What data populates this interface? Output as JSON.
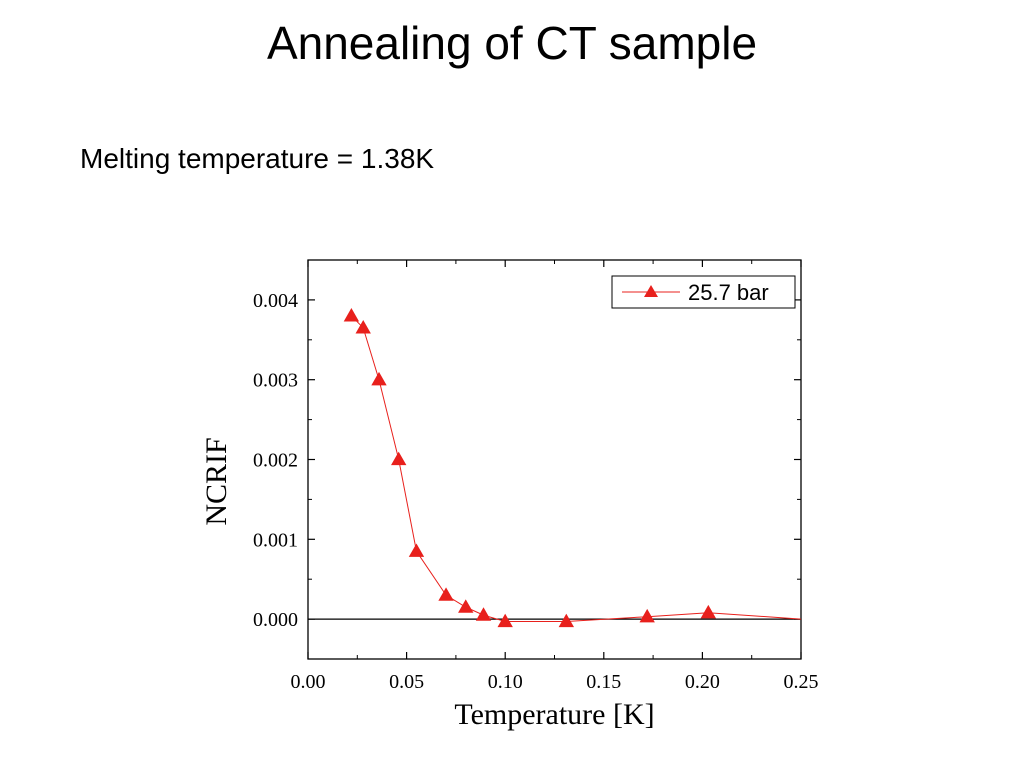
{
  "slide": {
    "title": "Annealing of CT sample",
    "subtitle": "Melting temperature = 1.38K"
  },
  "colors": {
    "series": "#e8201c",
    "axis": "#000000",
    "background": "#ffffff"
  },
  "chart_data": {
    "type": "line",
    "title": "",
    "xlabel": "Temperature [K]",
    "ylabel": "NCRIF",
    "xlim": [
      0.0,
      0.25
    ],
    "ylim": [
      -0.0005,
      0.0045
    ],
    "x_ticks": [
      "0.00",
      "0.05",
      "0.10",
      "0.15",
      "0.20",
      "0.25"
    ],
    "y_ticks": [
      "0.000",
      "0.001",
      "0.002",
      "0.003",
      "0.004"
    ],
    "x_tick_values": [
      0.0,
      0.05,
      0.1,
      0.15,
      0.2,
      0.25
    ],
    "y_tick_values": [
      0.0,
      0.001,
      0.002,
      0.003,
      0.004
    ],
    "grid": false,
    "reference_line_y": 0.0,
    "legend_position": "top-right",
    "series": [
      {
        "name": "25.7 bar",
        "marker": "triangle",
        "color": "#e8201c",
        "x": [
          0.022,
          0.028,
          0.036,
          0.046,
          0.055,
          0.07,
          0.08,
          0.089,
          0.1,
          0.131,
          0.172,
          0.203,
          0.25
        ],
        "y": [
          0.0038,
          0.00365,
          0.003,
          0.002,
          0.00085,
          0.0003,
          0.00015,
          5e-05,
          -3e-05,
          -3e-05,
          3e-05,
          8e-05,
          0.0
        ]
      }
    ]
  }
}
